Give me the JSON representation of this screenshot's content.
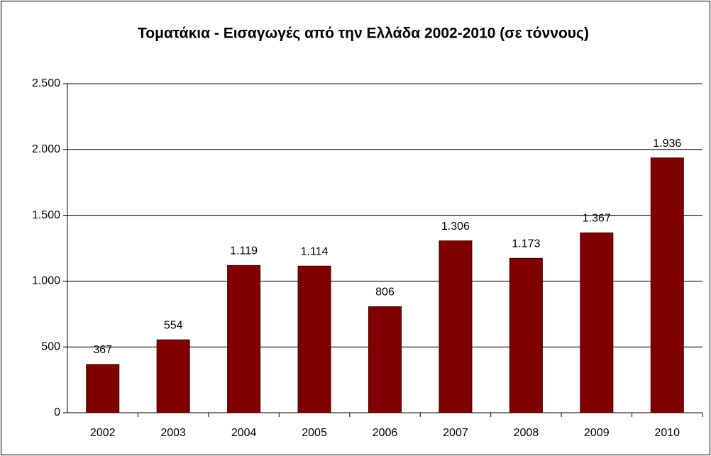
{
  "chart_data": {
    "type": "bar",
    "title": "Τοματάκια - Εισαγωγές από την Ελλάδα 2002-2010 (σε τόννους)",
    "categories": [
      "2002",
      "2003",
      "2004",
      "2005",
      "2006",
      "2007",
      "2008",
      "2009",
      "2010"
    ],
    "values": [
      367,
      554,
      1119,
      1114,
      806,
      1306,
      1173,
      1367,
      1936
    ],
    "value_labels": [
      "367",
      "554",
      "1.119",
      "1.114",
      "806",
      "1.306",
      "1.173",
      "1.367",
      "1.936"
    ],
    "color": "#800000",
    "ylim": [
      0,
      2500
    ],
    "yticks": [
      0,
      500,
      {
        "value": 1000,
        "label": "1.000"
      },
      {
        "value": 1500,
        "label": "1.500"
      },
      {
        "value": 2000,
        "label": "2.000"
      },
      {
        "value": 2500,
        "label": "2.500"
      }
    ],
    "grid": true
  }
}
